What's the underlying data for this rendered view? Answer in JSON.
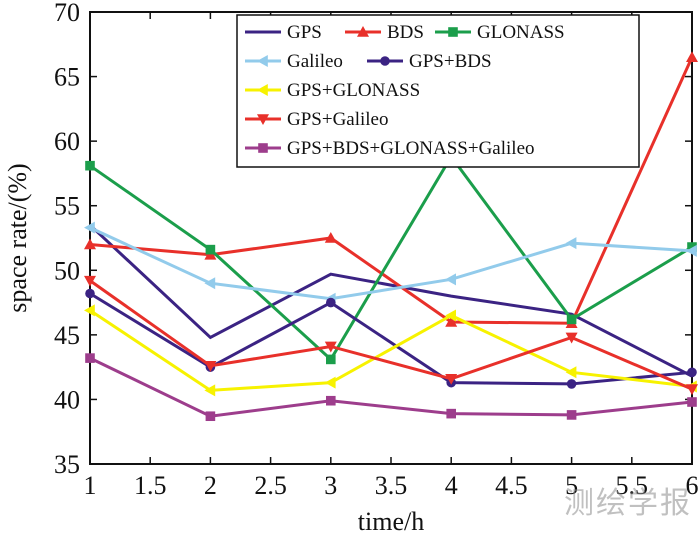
{
  "chart_data": {
    "type": "line",
    "title": "",
    "xlabel": "time/h",
    "ylabel": "space rate/(%)",
    "x": [
      1,
      2,
      3,
      4,
      5,
      6
    ],
    "xlim": [
      1,
      6
    ],
    "ylim": [
      35,
      70
    ],
    "xticks": [
      "1",
      "1.5",
      "2",
      "2.5",
      "3",
      "3.5",
      "4",
      "4.5",
      "5",
      "5.5",
      "6"
    ],
    "yticks": [
      "35",
      "40",
      "45",
      "50",
      "55",
      "60",
      "65",
      "70"
    ],
    "legend_position": "top-right",
    "series": [
      {
        "name": "GPS",
        "color": "#3b2383",
        "marker": "none",
        "values": [
          53.5,
          44.8,
          49.7,
          48.0,
          46.6,
          41.8
        ]
      },
      {
        "name": "BDS",
        "color": "#e8302a",
        "marker": "triangle-up",
        "values": [
          52.0,
          51.2,
          52.5,
          46.0,
          45.9,
          66.5
        ]
      },
      {
        "name": "GLONASS",
        "color": "#1b9e4b",
        "marker": "square",
        "values": [
          58.1,
          51.6,
          43.1,
          58.8,
          46.2,
          51.8
        ]
      },
      {
        "name": "Galileo",
        "color": "#92cbeb",
        "marker": "triangle-left",
        "values": [
          53.3,
          49.0,
          47.8,
          49.3,
          52.1,
          51.5
        ]
      },
      {
        "name": "GPS+BDS",
        "color": "#3b2383",
        "marker": "circle",
        "values": [
          48.2,
          42.5,
          47.5,
          41.3,
          41.2,
          42.1
        ]
      },
      {
        "name": "GPS+GLONASS",
        "color": "#f7f200",
        "marker": "triangle-left",
        "values": [
          46.9,
          40.7,
          41.3,
          46.5,
          42.1,
          41.0
        ]
      },
      {
        "name": "GPS+Galileo",
        "color": "#e8302a",
        "marker": "triangle-down",
        "values": [
          49.2,
          42.6,
          44.1,
          41.6,
          44.8,
          40.8
        ]
      },
      {
        "name": "GPS+BDS+GLONASS+Galileo",
        "color": "#9d3d8c",
        "marker": "square",
        "values": [
          43.2,
          38.7,
          39.9,
          38.9,
          38.8,
          39.8
        ]
      }
    ]
  },
  "watermark": "测绘学报"
}
